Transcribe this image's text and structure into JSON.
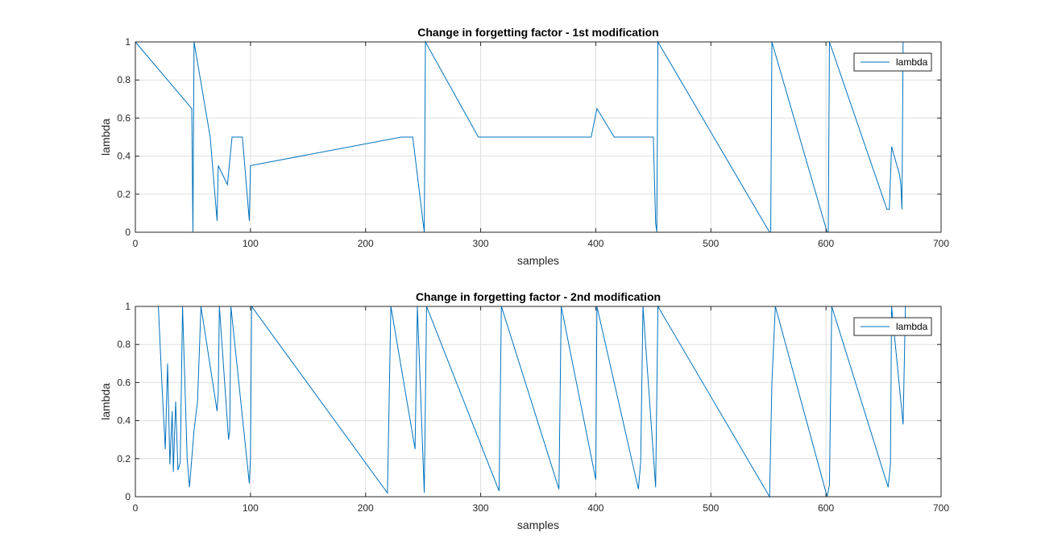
{
  "chart_data": [
    {
      "type": "line",
      "title": "Change in forgetting factor - 1st modification",
      "xlabel": "samples",
      "ylabel": "lambda",
      "xlim": [
        0,
        700
      ],
      "ylim": [
        0,
        1
      ],
      "xticks": [
        0,
        100,
        200,
        300,
        400,
        500,
        600,
        700
      ],
      "yticks": [
        0,
        0.2,
        0.4,
        0.6,
        0.8,
        1
      ],
      "grid": true,
      "legend": {
        "entries": [
          "lambda"
        ],
        "location": "top-right"
      },
      "series": [
        {
          "name": "lambda",
          "color": "#0072bd",
          "baseline": 1,
          "dips": [
            [
              49,
              0.65
            ],
            [
              50,
              0.0
            ],
            [
              51,
              1
            ],
            [
              65,
              0.5
            ],
            [
              71,
              0.06
            ],
            [
              72,
              0.35
            ],
            [
              80,
              0.25
            ],
            [
              84,
              0.5
            ],
            [
              88,
              0.5
            ],
            [
              93,
              0.5
            ],
            [
              99,
              0.06
            ],
            [
              100,
              0.35
            ],
            [
              231,
              0.5
            ],
            [
              236,
              0.5
            ],
            [
              241,
              0.5
            ],
            [
              250,
              0.05
            ],
            [
              251,
              0.0
            ],
            [
              252,
              1
            ],
            [
              298,
              0.5
            ],
            [
              316,
              0.5
            ],
            [
              351,
              0.5
            ],
            [
              368,
              0.5
            ],
            [
              396,
              0.5
            ],
            [
              401,
              0.65
            ],
            [
              416,
              0.5
            ],
            [
              438,
              0.5
            ],
            [
              450,
              0.5
            ],
            [
              452,
              0.05
            ],
            [
              453,
              0.0
            ],
            [
              454,
              1
            ],
            [
              551,
              0.0
            ],
            [
              552,
              0.0
            ],
            [
              553,
              1
            ],
            [
              601,
              0.0
            ],
            [
              602,
              0.0
            ],
            [
              603,
              1
            ],
            [
              653,
              0.12
            ],
            [
              655,
              0.12
            ],
            [
              657,
              0.45
            ],
            [
              664,
              0.3
            ],
            [
              665,
              0.25
            ],
            [
              666,
              0.12
            ],
            [
              667,
              1
            ]
          ]
        }
      ]
    },
    {
      "type": "line",
      "title": "Change in forgetting factor - 2nd modification",
      "xlabel": "samples",
      "ylabel": "lambda",
      "xlim": [
        0,
        700
      ],
      "ylim": [
        0,
        1
      ],
      "xticks": [
        0,
        100,
        200,
        300,
        400,
        500,
        600,
        700
      ],
      "yticks": [
        0,
        0.2,
        0.4,
        0.6,
        0.8,
        1
      ],
      "grid": true,
      "legend": {
        "entries": [
          "lambda"
        ],
        "location": "top-right"
      },
      "series": [
        {
          "name": "lambda",
          "color": "#0072bd",
          "baseline": 1,
          "dips": [
            [
              20,
              1
            ],
            [
              23,
              0.6
            ],
            [
              26,
              0.25
            ],
            [
              28,
              0.7
            ],
            [
              30,
              0.17
            ],
            [
              32,
              0.45
            ],
            [
              33,
              0.13
            ],
            [
              35,
              0.5
            ],
            [
              37,
              0.14
            ],
            [
              39,
              0.18
            ],
            [
              41,
              1
            ],
            [
              45,
              0.2
            ],
            [
              47,
              0.05
            ],
            [
              49,
              0.2
            ],
            [
              51,
              0.35
            ],
            [
              54,
              0.5
            ],
            [
              57,
              1
            ],
            [
              71,
              0.45
            ],
            [
              72,
              0.55
            ],
            [
              73,
              1
            ],
            [
              81,
              0.3
            ],
            [
              82,
              0.35
            ],
            [
              83,
              1
            ],
            [
              99,
              0.07
            ],
            [
              100,
              0.2
            ],
            [
              101,
              1
            ],
            [
              219,
              0.02
            ],
            [
              222,
              1
            ],
            [
              243,
              0.25
            ],
            [
              245,
              1
            ],
            [
              251,
              0.02
            ],
            [
              253,
              1
            ],
            [
              316,
              0.03
            ],
            [
              318,
              1
            ],
            [
              368,
              0.04
            ],
            [
              370,
              1
            ],
            [
              400,
              0.09
            ],
            [
              401,
              1
            ],
            [
              437,
              0.04
            ],
            [
              439,
              0.18
            ],
            [
              441,
              1
            ],
            [
              452,
              0.05
            ],
            [
              454,
              1
            ],
            [
              551,
              0.0
            ],
            [
              553,
              0.6
            ],
            [
              556,
              1
            ],
            [
              601,
              0.0
            ],
            [
              603,
              0.06
            ],
            [
              605,
              1
            ],
            [
              654,
              0.05
            ],
            [
              656,
              0.17
            ],
            [
              657,
              1
            ],
            [
              667,
              0.38
            ],
            [
              669,
              1
            ]
          ]
        }
      ]
    }
  ]
}
